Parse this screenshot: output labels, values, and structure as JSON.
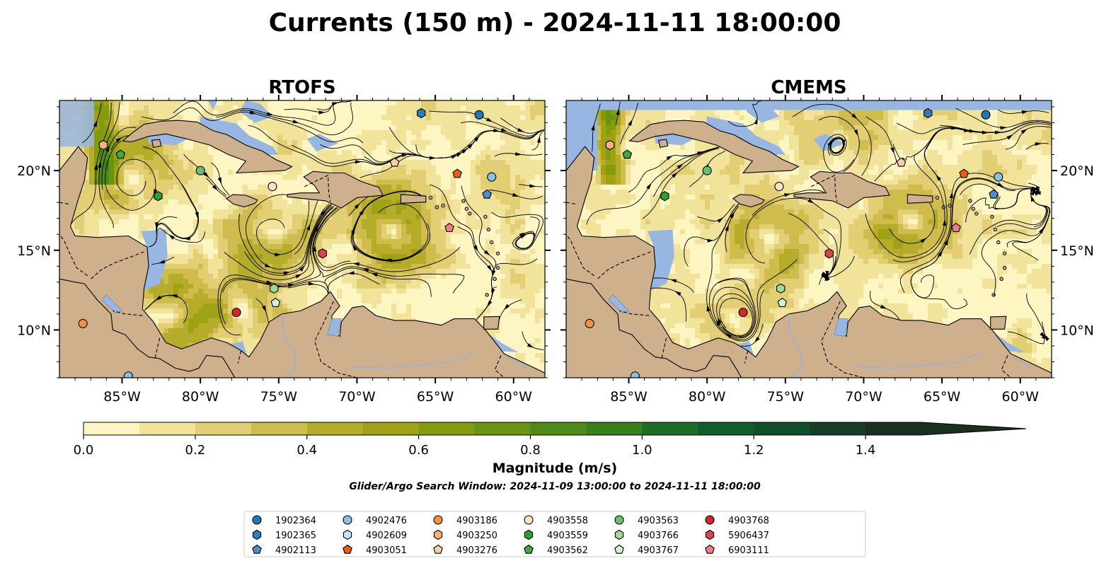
{
  "figure": {
    "title": "Currents (150 m) - 2024-11-11 18:00:00",
    "search_window": "Glider/Argo Search Window: 2024-11-09 13:00:00 to 2024-11-11 18:00:00"
  },
  "chart_data": [
    {
      "type": "heatmap",
      "title": "RTOFS",
      "quantity": "current magnitude with streamlines",
      "lon_range": [
        -89,
        -58
      ],
      "lat_range": [
        7,
        24.4
      ],
      "x_ticks": [
        "85°W",
        "80°W",
        "75°W",
        "70°W",
        "65°W",
        "60°W"
      ],
      "x_tick_values": [
        -85,
        -80,
        -75,
        -70,
        -65,
        -60
      ],
      "y_ticks": [
        "20°N",
        "15°N",
        "10°N"
      ],
      "y_tick_values": [
        20,
        15,
        10
      ],
      "y_tick_side": "left",
      "eddies": [
        {
          "lon": -84.5,
          "lat": 19.7,
          "strength": 0.55
        },
        {
          "lon": -75.5,
          "lat": 16.0,
          "strength": 0.7
        },
        {
          "lon": -67.6,
          "lat": 16.5,
          "strength": 0.85
        },
        {
          "lon": -81.7,
          "lat": 11.0,
          "strength": 0.6
        },
        {
          "lon": -77.5,
          "lat": 11.4,
          "strength": 0.5
        },
        {
          "lon": -86.0,
          "lat": 9.0,
          "strength": 0.55
        }
      ]
    },
    {
      "type": "heatmap",
      "title": "CMEMS",
      "quantity": "current magnitude with streamlines",
      "lon_range": [
        -89,
        -58
      ],
      "lat_range": [
        7,
        24.4
      ],
      "x_ticks": [
        "85°W",
        "80°W",
        "75°W",
        "70°W",
        "65°W",
        "60°W"
      ],
      "x_tick_values": [
        -85,
        -80,
        -75,
        -70,
        -65,
        -60
      ],
      "y_ticks": [
        "20°N",
        "15°N",
        "10°N"
      ],
      "y_tick_values": [
        20,
        15,
        10
      ],
      "y_tick_side": "right",
      "eddies": [
        {
          "lon": -75.9,
          "lat": 15.9,
          "strength": 0.6
        },
        {
          "lon": -66.9,
          "lat": 16.6,
          "strength": 0.8
        },
        {
          "lon": -78.2,
          "lat": 11.0,
          "strength": 0.55
        },
        {
          "lon": -86.0,
          "lat": 9.0,
          "strength": 0.55
        },
        {
          "lon": -71.5,
          "lat": 21.8,
          "strength": 0.45
        }
      ]
    }
  ],
  "colorbar": {
    "label": "Magnitude (m/s)",
    "min": 0.0,
    "max": 1.5,
    "step": 0.1,
    "extend": "max",
    "ticks": [
      0.0,
      0.2,
      0.4,
      0.6,
      0.8,
      1.0,
      1.2,
      1.4
    ],
    "tick_labels": [
      "0.0",
      "0.2",
      "0.4",
      "0.6",
      "0.8",
      "1.0",
      "1.2",
      "1.4"
    ],
    "colors": [
      "#fdf6c3",
      "#f1e399",
      "#e2cf74",
      "#cebd4c",
      "#b5ad2a",
      "#9ea214",
      "#849b0b",
      "#6a9312",
      "#4f8a17",
      "#3a7f1b",
      "#1c6d25",
      "#0d5e2a",
      "#0f4f29",
      "#153f24",
      "#1a311d"
    ]
  },
  "map_colors": {
    "land": "#cfb08c",
    "shallow": "#98b6e2",
    "river": "#97b3d6"
  },
  "floats": [
    {
      "id": "1902364",
      "marker": "circle",
      "color": "#1f77b4",
      "positions": [
        {
          "lon": -62.2,
          "lat": 23.5
        }
      ]
    },
    {
      "id": "1902365",
      "marker": "hexagon",
      "color": "#2f7ebc",
      "positions": [
        {
          "lon": -65.9,
          "lat": 23.6
        }
      ]
    },
    {
      "id": "4902113",
      "marker": "pentagon",
      "color": "#4a90d1",
      "positions": [
        {
          "lon": -61.7,
          "lat": 18.5
        }
      ]
    },
    {
      "id": "4902476",
      "marker": "circle",
      "color": "#8cc0e8",
      "positions": [
        {
          "lon": -61.4,
          "lat": 19.6
        },
        {
          "lon": -84.6,
          "lat": 7.1
        }
      ]
    },
    {
      "id": "4902609",
      "marker": "hexagon",
      "color": "#c7e2f6",
      "positions": []
    },
    {
      "id": "4903051",
      "marker": "pentagon",
      "color": "#e6600e",
      "positions": [
        {
          "lon": -63.6,
          "lat": 19.8
        }
      ]
    },
    {
      "id": "4903186",
      "marker": "circle",
      "color": "#f3913c",
      "positions": [
        {
          "lon": -87.5,
          "lat": 10.4
        }
      ]
    },
    {
      "id": "4903250",
      "marker": "hexagon",
      "color": "#f8b27a",
      "positions": [
        {
          "lon": -86.2,
          "lat": 21.6
        }
      ]
    },
    {
      "id": "4903276",
      "marker": "pentagon",
      "color": "#fbcfa3",
      "positions": [
        {
          "lon": -67.6,
          "lat": 20.5
        }
      ]
    },
    {
      "id": "4903558",
      "marker": "circle",
      "color": "#fde2c8",
      "positions": [
        {
          "lon": -75.4,
          "lat": 19.0
        }
      ]
    },
    {
      "id": "4903559",
      "marker": "hexagon",
      "color": "#2ca02c",
      "positions": [
        {
          "lon": -82.7,
          "lat": 18.4
        }
      ]
    },
    {
      "id": "4903562",
      "marker": "pentagon",
      "color": "#40aa40",
      "positions": [
        {
          "lon": -85.1,
          "lat": 21.0
        }
      ]
    },
    {
      "id": "4903563",
      "marker": "circle",
      "color": "#6cc26c",
      "positions": [
        {
          "lon": -80.0,
          "lat": 20.0
        }
      ]
    },
    {
      "id": "4903766",
      "marker": "hexagon",
      "color": "#9fdb97",
      "positions": [
        {
          "lon": -75.3,
          "lat": 12.6
        }
      ]
    },
    {
      "id": "4903767",
      "marker": "pentagon",
      "color": "#d3f2cf",
      "positions": [
        {
          "lon": -75.2,
          "lat": 11.7
        }
      ]
    },
    {
      "id": "4903768",
      "marker": "circle",
      "color": "#d62728",
      "positions": [
        {
          "lon": -77.7,
          "lat": 11.1
        }
      ]
    },
    {
      "id": "5906437",
      "marker": "hexagon",
      "color": "#e3414a",
      "positions": [
        {
          "lon": -72.2,
          "lat": 14.8
        }
      ]
    },
    {
      "id": "6903111",
      "marker": "pentagon",
      "color": "#f07a88",
      "positions": [
        {
          "lon": -64.1,
          "lat": 16.4
        }
      ]
    }
  ]
}
